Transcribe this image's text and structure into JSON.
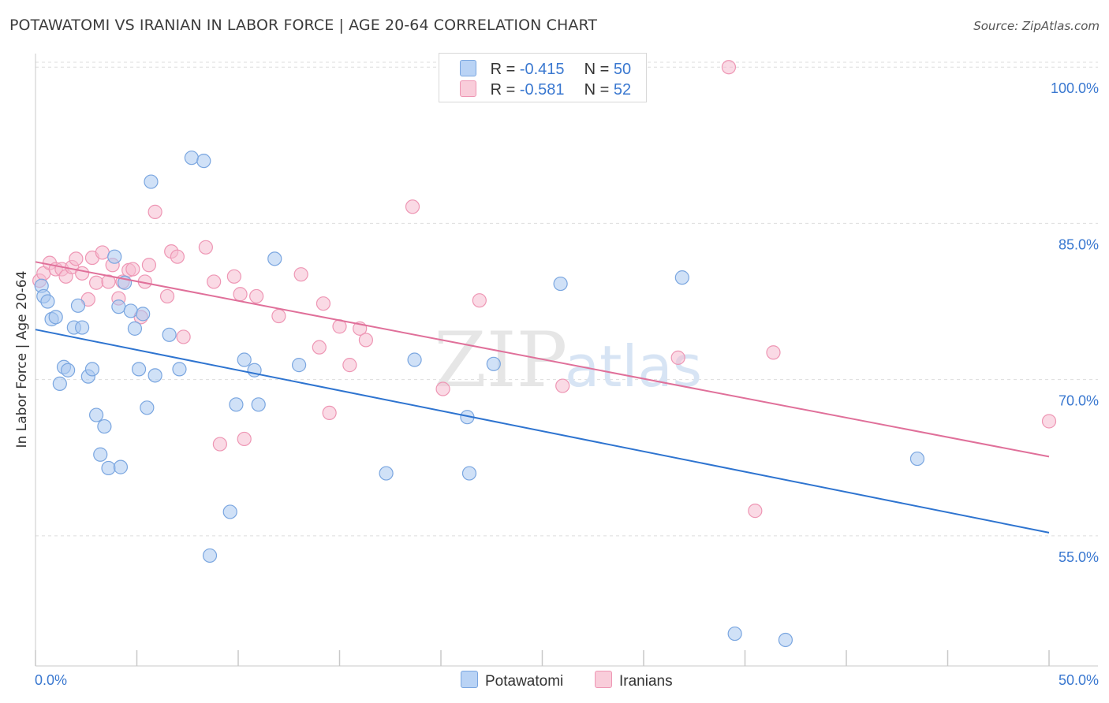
{
  "header": {
    "title": "POTAWATOMI VS IRANIAN IN LABOR FORCE | AGE 20-64 CORRELATION CHART",
    "source": "Source: ZipAtlas.com"
  },
  "legend": {
    "rows": [
      {
        "r_label": "R =",
        "r_value": "-0.415",
        "n_label": "N =",
        "n_value": "50"
      },
      {
        "r_label": "R =",
        "r_value": "-0.581",
        "n_label": "N =",
        "n_value": "52"
      }
    ]
  },
  "bottom_legend": [
    "Potawatomi",
    "Iranians"
  ],
  "watermark": {
    "zip": "ZIP",
    "atlas": "atlas"
  },
  "colors": {
    "blue_fill": "#aac8f0",
    "blue_stroke": "#7aa6e0",
    "blue_line": "#2e74d0",
    "pink_fill": "#f6bcd0",
    "pink_stroke": "#ee96b4",
    "pink_line": "#e0709a",
    "tick_label": "#3a78d0",
    "grid": "#dddddd"
  },
  "chart_data": {
    "type": "scatter",
    "title": "POTAWATOMI VS IRANIAN IN LABOR FORCE | AGE 20-64 CORRELATION CHART",
    "xlabel": "",
    "ylabel": "In Labor Force | Age 20-64",
    "xlim": [
      0,
      50
    ],
    "ylim": [
      42.5,
      101
    ],
    "x_tick_labels": [
      "0.0%",
      "50.0%"
    ],
    "y_ticks": [
      55,
      70,
      85,
      100
    ],
    "y_tick_labels": [
      "55.0%",
      "70.0%",
      "85.0%",
      "100.0%"
    ],
    "grid": true,
    "series": [
      {
        "name": "Potawatomi",
        "color": "#aac8f0",
        "r": -0.415,
        "n": 50,
        "trend": [
          [
            0,
            74.8
          ],
          [
            50,
            55.3
          ]
        ],
        "points": [
          [
            0.3,
            79.0
          ],
          [
            0.4,
            78.0
          ],
          [
            0.6,
            77.5
          ],
          [
            0.8,
            75.8
          ],
          [
            1.0,
            76.0
          ],
          [
            1.2,
            69.6
          ],
          [
            1.4,
            71.2
          ],
          [
            1.6,
            70.9
          ],
          [
            1.9,
            75.0
          ],
          [
            2.1,
            77.1
          ],
          [
            2.3,
            75.0
          ],
          [
            2.6,
            70.3
          ],
          [
            2.8,
            71.0
          ],
          [
            3.0,
            66.6
          ],
          [
            3.2,
            62.8
          ],
          [
            3.4,
            65.5
          ],
          [
            3.6,
            61.5
          ],
          [
            3.9,
            81.8
          ],
          [
            4.1,
            77.0
          ],
          [
            4.2,
            61.6
          ],
          [
            4.4,
            79.3
          ],
          [
            4.7,
            76.6
          ],
          [
            4.9,
            74.9
          ],
          [
            5.1,
            71.0
          ],
          [
            5.3,
            76.3
          ],
          [
            5.5,
            67.3
          ],
          [
            5.7,
            89.0
          ],
          [
            5.9,
            70.4
          ],
          [
            6.6,
            74.3
          ],
          [
            7.1,
            71.0
          ],
          [
            7.7,
            91.3
          ],
          [
            8.3,
            91.0
          ],
          [
            8.6,
            53.1
          ],
          [
            9.6,
            57.3
          ],
          [
            9.9,
            67.6
          ],
          [
            10.3,
            71.9
          ],
          [
            10.8,
            70.9
          ],
          [
            11.0,
            67.6
          ],
          [
            11.8,
            81.6
          ],
          [
            13.0,
            71.4
          ],
          [
            17.3,
            61.0
          ],
          [
            18.7,
            71.9
          ],
          [
            21.3,
            66.4
          ],
          [
            21.4,
            61.0
          ],
          [
            22.6,
            71.5
          ],
          [
            25.9,
            79.2
          ],
          [
            31.9,
            79.8
          ],
          [
            43.5,
            62.4
          ],
          [
            34.5,
            45.6
          ],
          [
            37.0,
            45.0
          ]
        ]
      },
      {
        "name": "Iranians",
        "color": "#f6bcd0",
        "r": -0.581,
        "n": 52,
        "trend": [
          [
            0,
            81.3
          ],
          [
            50,
            62.6
          ]
        ],
        "points": [
          [
            0.2,
            79.5
          ],
          [
            0.4,
            80.2
          ],
          [
            0.7,
            81.2
          ],
          [
            1.0,
            80.6
          ],
          [
            1.3,
            80.6
          ],
          [
            1.5,
            79.9
          ],
          [
            1.8,
            80.8
          ],
          [
            2.0,
            81.6
          ],
          [
            2.3,
            80.2
          ],
          [
            2.6,
            77.7
          ],
          [
            2.8,
            81.7
          ],
          [
            3.0,
            79.3
          ],
          [
            3.3,
            82.2
          ],
          [
            3.6,
            79.4
          ],
          [
            3.8,
            81.0
          ],
          [
            4.1,
            77.8
          ],
          [
            4.3,
            79.4
          ],
          [
            4.6,
            80.5
          ],
          [
            4.8,
            80.6
          ],
          [
            5.2,
            76.0
          ],
          [
            5.4,
            79.4
          ],
          [
            5.6,
            81.0
          ],
          [
            5.9,
            86.1
          ],
          [
            6.5,
            78.0
          ],
          [
            6.7,
            82.3
          ],
          [
            7.0,
            81.8
          ],
          [
            7.3,
            74.1
          ],
          [
            8.4,
            82.7
          ],
          [
            8.8,
            79.4
          ],
          [
            9.1,
            63.8
          ],
          [
            9.8,
            79.9
          ],
          [
            10.1,
            78.2
          ],
          [
            10.3,
            64.3
          ],
          [
            10.9,
            78.0
          ],
          [
            12.0,
            76.1
          ],
          [
            13.1,
            80.1
          ],
          [
            14.0,
            73.1
          ],
          [
            14.2,
            77.3
          ],
          [
            14.5,
            66.8
          ],
          [
            15.0,
            75.1
          ],
          [
            15.5,
            71.4
          ],
          [
            16.0,
            74.9
          ],
          [
            16.3,
            73.8
          ],
          [
            18.6,
            86.6
          ],
          [
            20.1,
            69.1
          ],
          [
            21.9,
            77.6
          ],
          [
            26.0,
            69.4
          ],
          [
            31.7,
            72.1
          ],
          [
            34.2,
            100.0
          ],
          [
            35.5,
            57.4
          ],
          [
            36.4,
            72.6
          ],
          [
            50.0,
            66.0
          ]
        ]
      }
    ]
  }
}
